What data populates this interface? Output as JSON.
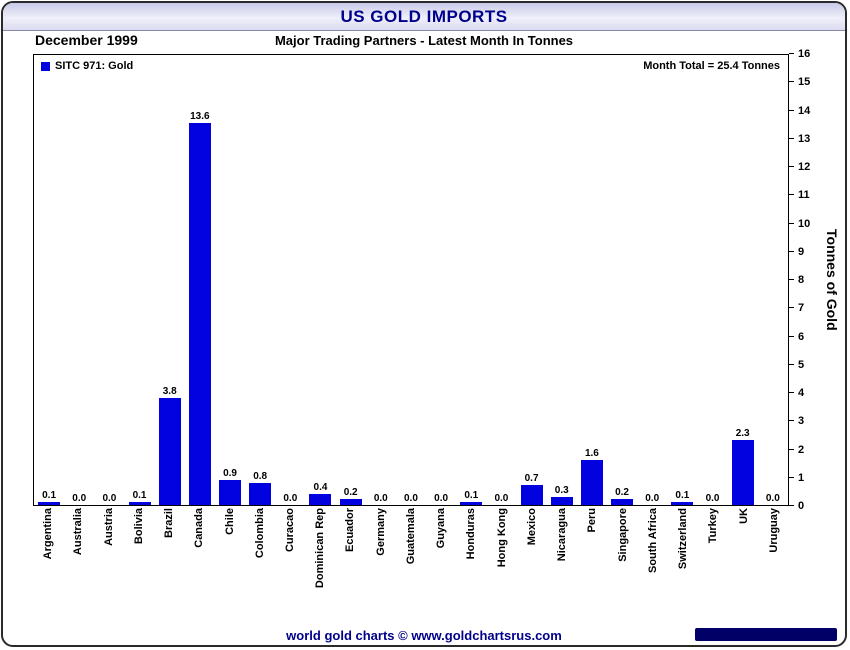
{
  "header": {
    "title": "US GOLD IMPORTS"
  },
  "subheader": {
    "date": "December 1999",
    "subtitle": "Major Trading Partners - Latest Month In Tonnes"
  },
  "legend": {
    "label": "SITC 971: Gold"
  },
  "annotation": {
    "month_total": "Month Total = 25.4 Tonnes"
  },
  "footer": {
    "credit": "world gold charts © www.goldchartsrus.com"
  },
  "colors": {
    "bar": "#0202e0",
    "title": "#00008b",
    "brand_bar": "#000066"
  },
  "chart_data": {
    "type": "bar",
    "title": "US GOLD IMPORTS",
    "subtitle": "Major Trading Partners - Latest Month In Tonnes",
    "period": "December 1999",
    "legend": "SITC 971: Gold",
    "month_total": 25.4,
    "xlabel": "",
    "ylabel": "Tonnes of Gold",
    "ylim": [
      0,
      16
    ],
    "ytick_step": 1,
    "grid": false,
    "legend_position": "top-left",
    "yaxis_side": "right",
    "categories": [
      "Argentina",
      "Australia",
      "Austria",
      "Bolivia",
      "Brazil",
      "Canada",
      "Chile",
      "Colombia",
      "Curacao",
      "Dominican Rep",
      "Ecuador",
      "Germany",
      "Guatemala",
      "Guyana",
      "Honduras",
      "Hong Kong",
      "Mexico",
      "Nicaragua",
      "Peru",
      "Singapore",
      "South Africa",
      "Switzerland",
      "Turkey",
      "UK",
      "Uruguay"
    ],
    "values": [
      0.1,
      0.0,
      0.0,
      0.1,
      3.8,
      13.6,
      0.9,
      0.8,
      0.0,
      0.4,
      0.2,
      0.0,
      0.0,
      0.0,
      0.1,
      0.0,
      0.7,
      0.3,
      1.6,
      0.2,
      0.0,
      0.1,
      0.0,
      2.3,
      0.0
    ]
  }
}
